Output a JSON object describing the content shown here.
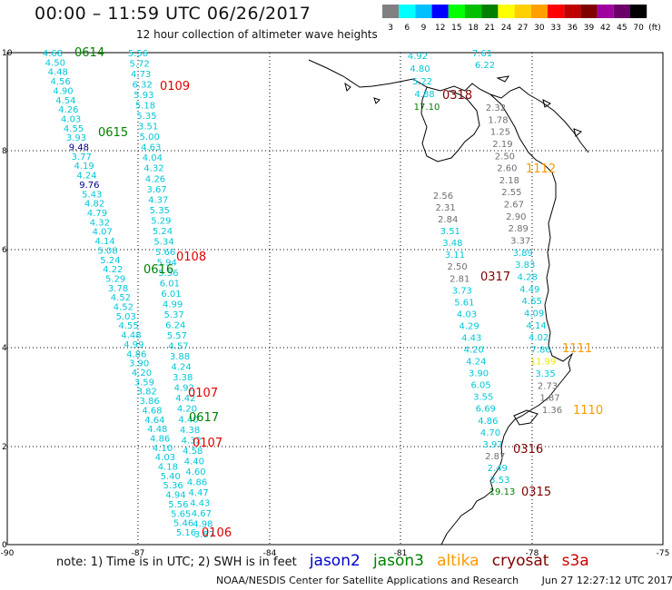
{
  "header": {
    "title": "00:00 – 11:59 UTC 06/26/2017",
    "subtitle": "12 hour collection of altimeter wave heights"
  },
  "colorbar": {
    "unit_label": "(ft)",
    "bins": [
      {
        "label": "3",
        "color": "#808080"
      },
      {
        "label": "6",
        "color": "#00ffff"
      },
      {
        "label": "9",
        "color": "#00bfff"
      },
      {
        "label": "12",
        "color": "#0000ff"
      },
      {
        "label": "15",
        "color": "#00ff00"
      },
      {
        "label": "18",
        "color": "#00c000"
      },
      {
        "label": "21",
        "color": "#008000"
      },
      {
        "label": "24",
        "color": "#ffff00"
      },
      {
        "label": "27",
        "color": "#ffd000"
      },
      {
        "label": "30",
        "color": "#ffa000"
      },
      {
        "label": "33",
        "color": "#ff0000"
      },
      {
        "label": "36",
        "color": "#c00000"
      },
      {
        "label": "39",
        "color": "#800000"
      },
      {
        "label": "42",
        "color": "#a000a0"
      },
      {
        "label": "45",
        "color": "#6a006a"
      },
      {
        "label": "70",
        "color": "#000000"
      }
    ]
  },
  "axes": {
    "lon_labels": [
      "-90",
      "-87",
      "-84",
      "-81",
      "-78",
      "-75"
    ],
    "lat_labels": [
      "10",
      "8",
      "6",
      "4",
      "2",
      "0"
    ]
  },
  "colors": {
    "jason2": "#0000cc",
    "jason3": "#008000",
    "altika": "#ff9900",
    "cryosat": "#800000",
    "s3a": "#cc0000",
    "track_cyan": "#00c8d8",
    "track_gray": "#707070",
    "yellow": "#e8e800",
    "dark_blue": "#00008b"
  },
  "time_labels": [
    {
      "text": "0614",
      "color": "#008000"
    },
    {
      "text": "0109",
      "color": "#e00000"
    },
    {
      "text": "0615",
      "color": "#008000"
    },
    {
      "text": "0108",
      "color": "#e00000"
    },
    {
      "text": "0616",
      "color": "#008000"
    },
    {
      "text": "0107",
      "color": "#e00000"
    },
    {
      "text": "0617",
      "color": "#008000"
    },
    {
      "text": "0107",
      "color": "#e00000"
    },
    {
      "text": "0106",
      "color": "#e00000"
    },
    {
      "text": "0318",
      "color": "#800000"
    },
    {
      "text": "1112",
      "color": "#ff9900"
    },
    {
      "text": "0317",
      "color": "#800000"
    },
    {
      "text": "1111",
      "color": "#ff9900"
    },
    {
      "text": "1110",
      "color": "#ff9900"
    },
    {
      "text": "0316",
      "color": "#800000"
    },
    {
      "text": "0315",
      "color": "#800000"
    }
  ],
  "tracks": {
    "track_a": [
      "4.68",
      "4.50",
      "4.48",
      "4.56",
      "4.90",
      "4.54",
      "4.26",
      "4.03",
      "4.55",
      "3.93",
      "9.48",
      "3.77",
      "4.19",
      "4.24",
      "9.76",
      "5.43",
      "4.82",
      "4.79",
      "4.32",
      "4.07",
      "4.14",
      "5.08",
      "5.24",
      "4.22",
      "5.29",
      "3.78",
      "4.52",
      "4.52",
      "5.03",
      "4.55",
      "4.48",
      "4.99",
      "4.86",
      "3.90",
      "4.20",
      "3.59",
      "3.82",
      "3.86",
      "4.68",
      "4.64",
      "4.48",
      "4.86",
      "4.10",
      "4.03",
      "4.18",
      "5.40",
      "5.36",
      "4.94",
      "5.56",
      "5.65",
      "5.46",
      "5.16"
    ],
    "track_b": [
      "5.56",
      "5.72",
      "4.73",
      "6.32",
      "5.93",
      "5.18",
      "5.35",
      "3.51",
      "5.00",
      "4.63",
      "4.04",
      "4.32",
      "4.26",
      "3.67",
      "4.37",
      "5.35",
      "5.29",
      "5.24",
      "5.34",
      "5.66",
      "5.94",
      "5.56",
      "6.01",
      "6.01",
      "4.99",
      "5.37",
      "6.24",
      "5.57",
      "4.57",
      "3.88",
      "4.24",
      "3.38",
      "4.92",
      "4.42",
      "4.20",
      "4.40",
      "4.38",
      "4.32",
      "4.58",
      "4.40",
      "4.60",
      "4.86",
      "4.47",
      "4.43",
      "4.67",
      "4.98",
      "3.87"
    ],
    "track_c": [
      "4.92",
      "4.80",
      "5.22",
      "4.88",
      "17.10"
    ],
    "track_d": [
      "7.61",
      "6.22"
    ],
    "track_e": [
      "2.32",
      "1.78",
      "1.25",
      "2.19",
      "2.50",
      "2.60",
      "2.18",
      "2.55",
      "2.67",
      "2.90",
      "2.89",
      "3.37",
      "3.89",
      "3.83",
      "4.28",
      "4.49",
      "4.65",
      "4.09",
      "4.14",
      "4.02",
      "7.86",
      "11.99",
      "3.35",
      "2.73",
      "1.87",
      "1.36"
    ],
    "track_f": [
      "2.56",
      "2.31",
      "2.84",
      "3.51",
      "3.48",
      "3.11",
      "2.50",
      "2.81",
      "3.73",
      "5.61",
      "4.03",
      "4.29",
      "4.43",
      "4.20",
      "4.24",
      "3.90",
      "6.05",
      "3.55",
      "6.69",
      "4.86",
      "4.70",
      "3.97",
      "2.87",
      "2.49",
      "3.53",
      "19.13"
    ]
  },
  "legend": {
    "note": "note: 1) Time is in UTC; 2) SWH is in feet",
    "satellites": [
      {
        "name": "jason2",
        "color": "#0000cc"
      },
      {
        "name": "jason3",
        "color": "#008000"
      },
      {
        "name": "altika",
        "color": "#ff9900"
      },
      {
        "name": "cryosat",
        "color": "#800000"
      },
      {
        "name": "s3a",
        "color": "#cc0000"
      }
    ]
  },
  "footer": {
    "credit": "NOAA/NESDIS Center for Satellite Applications and Research",
    "timestamp": "Jun 27 12:27:12 UTC 2017"
  }
}
